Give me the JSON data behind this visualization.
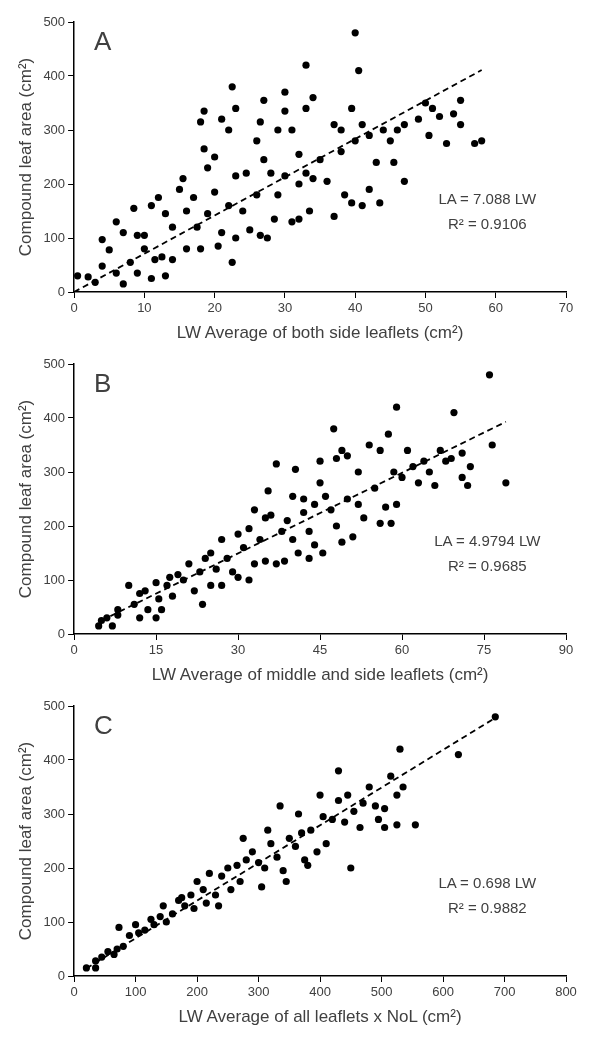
{
  "chart_data": [
    {
      "type": "scatter",
      "title": "A",
      "xlabel": "LW Average of both side leaflets (cm²)",
      "ylabel": "Compound leaf area (cm²)",
      "xlim": [
        0,
        70
      ],
      "xticks": [
        0,
        10,
        20,
        30,
        40,
        50,
        60,
        70
      ],
      "ylim": [
        0,
        500
      ],
      "yticks": [
        0,
        100,
        200,
        300,
        400,
        500
      ],
      "grid": false,
      "legend": false,
      "marker": "circle",
      "annotations": [
        "LA = 7.088 LW",
        "R² = 0.9106"
      ],
      "series": [
        {
          "color": "#000000",
          "x": [
            0.5,
            2,
            3,
            4,
            4,
            5,
            6,
            6,
            7,
            7,
            8,
            8.5,
            9,
            9,
            10,
            10,
            11,
            11,
            11.5,
            12,
            12.5,
            13,
            13,
            14,
            14,
            15,
            15.5,
            16,
            16,
            17,
            17.5,
            18,
            18,
            18.5,
            18.5,
            19,
            19,
            20,
            20,
            20.5,
            21,
            21,
            22,
            22,
            22.5,
            22.5,
            23,
            23,
            23,
            24,
            24.5,
            25,
            26,
            26,
            26.5,
            26.5,
            27,
            27,
            27.5,
            28,
            28.5,
            29,
            29,
            30,
            30,
            30,
            31,
            31,
            32,
            32,
            32,
            33,
            33,
            33,
            33.5,
            34,
            34,
            35,
            36,
            37,
            37,
            38,
            38,
            38.5,
            39.5,
            40,
            39.5,
            40,
            40.5,
            41,
            41,
            42,
            42,
            43,
            43.5,
            44,
            45,
            45.5,
            46,
            47,
            47,
            49,
            50,
            50.5,
            51,
            52,
            53,
            54,
            55,
            55,
            57,
            58
          ],
          "values": [
            30,
            28,
            18,
            97,
            48,
            78,
            130,
            35,
            15,
            110,
            55,
            155,
            105,
            35,
            80,
            105,
            25,
            160,
            60,
            175,
            65,
            30,
            145,
            120,
            60,
            190,
            210,
            80,
            150,
            175,
            120,
            315,
            80,
            335,
            265,
            230,
            145,
            250,
            185,
            85,
            320,
            110,
            300,
            160,
            380,
            55,
            340,
            215,
            100,
            150,
            220,
            115,
            280,
            180,
            315,
            105,
            355,
            245,
            100,
            220,
            135,
            300,
            180,
            370,
            335,
            215,
            300,
            130,
            255,
            200,
            135,
            420,
            340,
            220,
            150,
            360,
            210,
            245,
            205,
            310,
            140,
            260,
            300,
            180,
            165,
            480,
            340,
            280,
            410,
            310,
            160,
            290,
            190,
            240,
            165,
            300,
            280,
            240,
            300,
            310,
            205,
            320,
            350,
            290,
            340,
            325,
            275,
            330,
            355,
            310,
            275,
            280
          ]
        },
        {
          "type": "line",
          "color": "#000000",
          "marker": "none",
          "line_style": "dashed",
          "x": [
            0,
            58
          ],
          "values": [
            0,
            411
          ]
        }
      ]
    },
    {
      "type": "scatter",
      "title": "B",
      "xlabel": "LW Average of middle and side leaflets (cm²)",
      "ylabel": "Compound leaf area (cm²)",
      "xlim": [
        0,
        90
      ],
      "xticks": [
        0,
        15,
        30,
        45,
        60,
        75,
        90
      ],
      "ylim": [
        0,
        500
      ],
      "yticks": [
        0,
        100,
        200,
        300,
        400,
        500
      ],
      "grid": false,
      "legend": false,
      "marker": "circle",
      "annotations": [
        "LA = 4.9794 LW",
        "R² = 0.9685"
      ],
      "series": [
        {
          "color": "#000000",
          "x": [
            4.5,
            5,
            6,
            7,
            8,
            8,
            10,
            11,
            12,
            12,
            13,
            13.5,
            15,
            15,
            15.5,
            16,
            17,
            17.5,
            18,
            19,
            20,
            21,
            22,
            23,
            23.5,
            24,
            25,
            25,
            26,
            27,
            27,
            28,
            29,
            30,
            30,
            31,
            32,
            32,
            33,
            33,
            34,
            35,
            35,
            35.5,
            36,
            37,
            37,
            38,
            38.5,
            39,
            40,
            40,
            40.5,
            41,
            42,
            42,
            43,
            43,
            44,
            44,
            45,
            45,
            45.5,
            46,
            47,
            47.5,
            48,
            48,
            49,
            49,
            50,
            50,
            51,
            52,
            52,
            53,
            54,
            55,
            56,
            56,
            57,
            57.5,
            58,
            58.5,
            59,
            59,
            60,
            61,
            62,
            63,
            64,
            65,
            66,
            67,
            68,
            69,
            69.5,
            71,
            71,
            72,
            72.5,
            76,
            76.5,
            79
          ],
          "values": [
            15,
            25,
            30,
            15,
            45,
            35,
            90,
            55,
            30,
            75,
            80,
            45,
            95,
            30,
            65,
            45,
            90,
            105,
            70,
            110,
            100,
            130,
            80,
            115,
            55,
            140,
            150,
            90,
            120,
            175,
            90,
            140,
            115,
            185,
            105,
            160,
            100,
            195,
            230,
            130,
            175,
            215,
            135,
            265,
            220,
            315,
            130,
            190,
            135,
            210,
            255,
            175,
            305,
            150,
            225,
            250,
            140,
            190,
            240,
            165,
            320,
            280,
            150,
            255,
            230,
            380,
            325,
            200,
            340,
            170,
            250,
            330,
            180,
            240,
            300,
            215,
            350,
            270,
            340,
            205,
            235,
            370,
            205,
            300,
            420,
            240,
            290,
            340,
            310,
            280,
            320,
            300,
            275,
            340,
            320,
            325,
            410,
            335,
            290,
            275,
            310,
            480,
            350,
            280
          ]
        },
        {
          "type": "line",
          "color": "#000000",
          "marker": "none",
          "line_style": "dashed",
          "x": [
            5,
            79
          ],
          "values": [
            25,
            393
          ]
        }
      ]
    },
    {
      "type": "scatter",
      "title": "C",
      "xlabel": "LW Average of all leaflets x NoL (cm²)",
      "ylabel": "Compound leaf area (cm²)",
      "xlim": [
        0,
        800
      ],
      "xticks": [
        0,
        100,
        200,
        300,
        400,
        500,
        600,
        700,
        800
      ],
      "ylim": [
        0,
        500
      ],
      "yticks": [
        0,
        100,
        200,
        300,
        400,
        500
      ],
      "grid": false,
      "legend": false,
      "marker": "circle",
      "annotations": [
        "LA = 0.698 LW",
        "R² = 0.9882"
      ],
      "series": [
        {
          "color": "#000000",
          "x": [
            20,
            35,
            35,
            45,
            55,
            65,
            70,
            73,
            80,
            90,
            100,
            105,
            115,
            125,
            130,
            140,
            145,
            150,
            160,
            170,
            175,
            180,
            190,
            195,
            200,
            210,
            215,
            220,
            230,
            235,
            240,
            250,
            255,
            265,
            270,
            275,
            280,
            290,
            300,
            305,
            310,
            315,
            320,
            330,
            335,
            340,
            345,
            350,
            360,
            365,
            370,
            375,
            380,
            385,
            395,
            400,
            405,
            410,
            420,
            430,
            430,
            440,
            445,
            450,
            455,
            465,
            470,
            480,
            490,
            495,
            505,
            505,
            515,
            525,
            525,
            530,
            535,
            555,
            625,
            685
          ],
          "values": [
            15,
            15,
            28,
            35,
            45,
            40,
            50,
            90,
            55,
            75,
            95,
            80,
            85,
            105,
            95,
            110,
            130,
            100,
            115,
            140,
            145,
            130,
            150,
            125,
            175,
            160,
            135,
            190,
            150,
            130,
            185,
            200,
            160,
            205,
            175,
            255,
            215,
            230,
            210,
            165,
            200,
            270,
            245,
            220,
            315,
            195,
            175,
            255,
            240,
            300,
            265,
            215,
            205,
            270,
            230,
            335,
            295,
            245,
            290,
            380,
            325,
            285,
            335,
            200,
            305,
            275,
            320,
            350,
            315,
            290,
            310,
            275,
            370,
            335,
            280,
            420,
            350,
            280,
            410,
            480
          ]
        },
        {
          "type": "line",
          "color": "#000000",
          "marker": "none",
          "line_style": "dashed",
          "x": [
            20,
            685
          ],
          "values": [
            14,
            478
          ]
        }
      ]
    }
  ]
}
